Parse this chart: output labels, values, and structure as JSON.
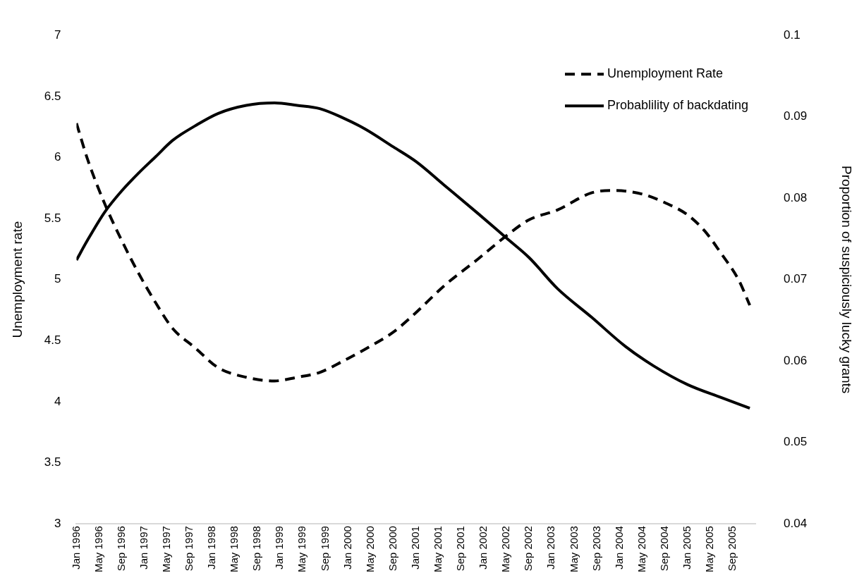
{
  "chart_data": {
    "type": "line",
    "xlabel": null,
    "ylabel": "Unemployment rate",
    "y2label": "Proportion of suspiciously lucky grants",
    "series": [
      {
        "name": "Unemployment Rate",
        "color": "#000000",
        "line_style": "dashed",
        "x": [
          "1996-01",
          "1996-03",
          "1996-06",
          "1996-09",
          "1996-12",
          "1997-03",
          "1997-06",
          "1997-10",
          "1998-02",
          "1998-07",
          "1998-12",
          "1999-04",
          "1999-08",
          "1999-12",
          "2000-04",
          "2000-09",
          "2001-01",
          "2001-06",
          "2001-12",
          "2002-05",
          "2002-09",
          "2003-02",
          "2003-08",
          "2003-12",
          "2004-05",
          "2004-09",
          "2005-01",
          "2005-04",
          "2005-07",
          "2005-10",
          "2005-12"
        ],
        "values": [
          6.28,
          5.98,
          5.62,
          5.32,
          5.05,
          4.81,
          4.6,
          4.44,
          4.28,
          4.2,
          4.17,
          4.2,
          4.24,
          4.33,
          4.43,
          4.57,
          4.73,
          4.95,
          5.17,
          5.36,
          5.49,
          5.57,
          5.71,
          5.73,
          5.7,
          5.63,
          5.53,
          5.4,
          5.21,
          5.0,
          4.79
        ]
      },
      {
        "name": "Probablility of backdating",
        "color": "#000000",
        "line_style": "solid",
        "axis": "y2",
        "x": [
          "1996-01",
          "1996-03",
          "1996-06",
          "1996-09",
          "1996-12",
          "1997-03",
          "1997-06",
          "1997-10",
          "1998-02",
          "1998-07",
          "1998-12",
          "1999-04",
          "1999-08",
          "1999-12",
          "2000-04",
          "2000-09",
          "2001-01",
          "2001-06",
          "2001-12",
          "2002-05",
          "2002-09",
          "2003-02",
          "2003-08",
          "2004-02",
          "2004-07",
          "2005-01",
          "2005-07",
          "2005-12"
        ],
        "values": [
          0.0724,
          0.0749,
          0.0783,
          0.0809,
          0.0831,
          0.0851,
          0.0871,
          0.0889,
          0.0904,
          0.0914,
          0.0917,
          0.0914,
          0.091,
          0.0899,
          0.0885,
          0.0863,
          0.0845,
          0.0816,
          0.0781,
          0.0751,
          0.0727,
          0.0689,
          0.0654,
          0.0618,
          0.0594,
          0.0571,
          0.0555,
          0.0542
        ]
      }
    ],
    "xlim": [
      "1996-01",
      "2006-01"
    ],
    "xticks": [
      {
        "value": "1996-01",
        "label": "Jan 1996"
      },
      {
        "value": "1996-05",
        "label": "May 1996"
      },
      {
        "value": "1996-09",
        "label": "Sep 1996"
      },
      {
        "value": "1997-01",
        "label": "Jan 1997"
      },
      {
        "value": "1997-05",
        "label": "May 1997"
      },
      {
        "value": "1997-09",
        "label": "Sep 1997"
      },
      {
        "value": "1998-01",
        "label": "Jan 1998"
      },
      {
        "value": "1998-05",
        "label": "May 1998"
      },
      {
        "value": "1998-09",
        "label": "Sep 1998"
      },
      {
        "value": "1999-01",
        "label": "Jan 1999"
      },
      {
        "value": "1999-05",
        "label": "May 1999"
      },
      {
        "value": "1999-09",
        "label": "Sep 1999"
      },
      {
        "value": "2000-01",
        "label": "Jan 2000"
      },
      {
        "value": "2000-05",
        "label": "May 2000"
      },
      {
        "value": "2000-09",
        "label": "Sep 2000"
      },
      {
        "value": "2001-01",
        "label": "Jan 2001"
      },
      {
        "value": "2001-05",
        "label": "May 2001"
      },
      {
        "value": "2001-09",
        "label": "Sep 2001"
      },
      {
        "value": "2002-01",
        "label": "Jan 2002"
      },
      {
        "value": "2002-05",
        "label": "May 2002"
      },
      {
        "value": "2002-09",
        "label": "Sep 2002"
      },
      {
        "value": "2003-01",
        "label": "Jan 2003"
      },
      {
        "value": "2003-05",
        "label": "May 2003"
      },
      {
        "value": "2003-09",
        "label": "Sep 2003"
      },
      {
        "value": "2004-01",
        "label": "Jan 2004"
      },
      {
        "value": "2004-05",
        "label": "May 2004"
      },
      {
        "value": "2004-09",
        "label": "Sep 2004"
      },
      {
        "value": "2005-01",
        "label": "Jan 2005"
      },
      {
        "value": "2005-05",
        "label": "May 2005"
      },
      {
        "value": "2005-09",
        "label": "Sep 2005"
      }
    ],
    "ylim": [
      3,
      7
    ],
    "yticks": [
      3,
      3.5,
      4,
      4.5,
      5,
      5.5,
      6,
      6.5,
      7
    ],
    "y2lim": [
      0.04,
      0.1
    ],
    "y2ticks": [
      0.04,
      0.05,
      0.06,
      0.07,
      0.08,
      0.09,
      0.1
    ],
    "grid": false,
    "legend": "top right",
    "marker": "none"
  }
}
